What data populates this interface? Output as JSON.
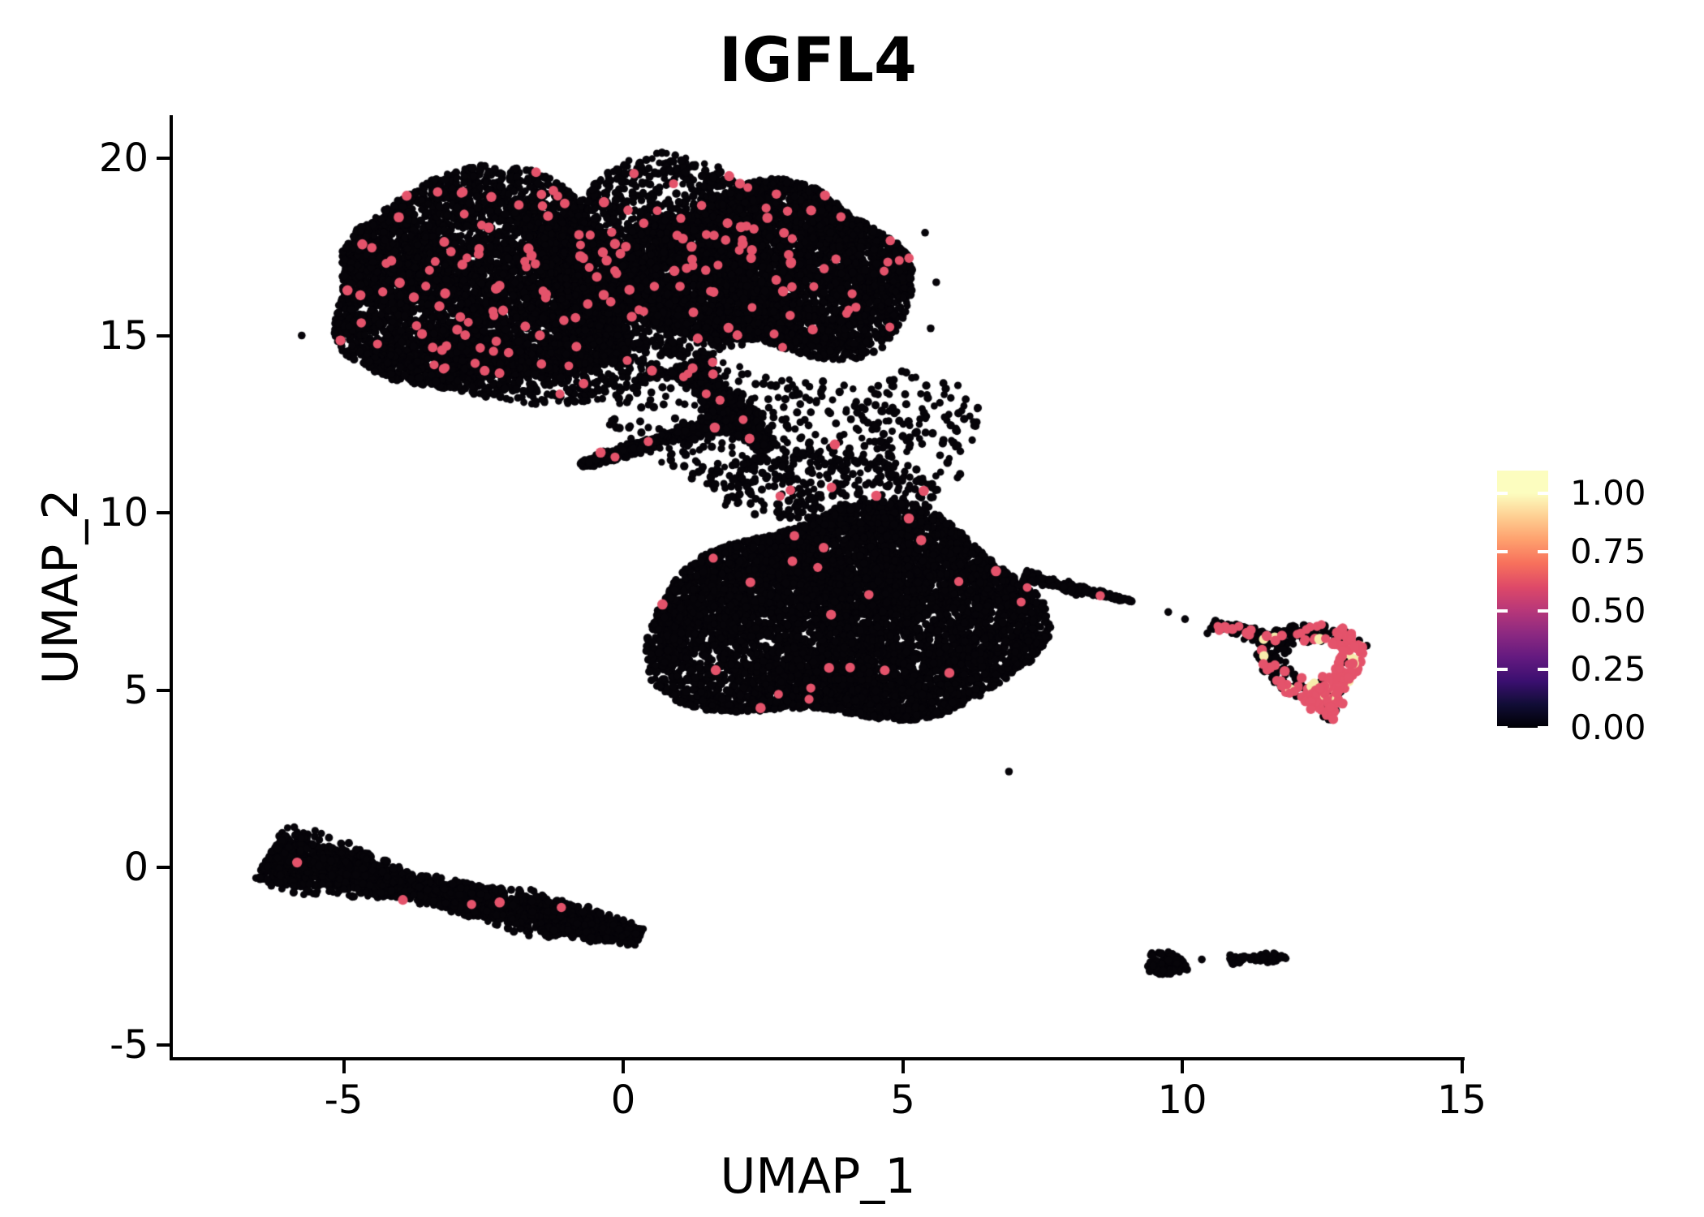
{
  "title": "IGFL4",
  "axes": {
    "x_label": "UMAP_1",
    "y_label": "UMAP_2",
    "x_ticks": [
      "-5",
      "0",
      "5",
      "10",
      "15"
    ],
    "x_tick_values": [
      -5,
      0,
      5,
      10,
      15
    ],
    "y_ticks": [
      "20",
      "15",
      "10",
      "5",
      "0",
      "-5"
    ],
    "y_tick_values": [
      20,
      15,
      10,
      5,
      0,
      -5
    ]
  },
  "legend": {
    "tick_labels": [
      "1.00",
      "0.75",
      "0.50",
      "0.25",
      "0.00"
    ],
    "tick_values": [
      1.0,
      0.75,
      0.5,
      0.25,
      0.0
    ],
    "colormap": "magma",
    "gradient_stops": [
      [
        "#000004",
        0
      ],
      [
        "#110d36",
        9.1
      ],
      [
        "#3b0f70",
        18.2
      ],
      [
        "#641a80",
        27.4
      ],
      [
        "#8c2981",
        36.5
      ],
      [
        "#b73779",
        45.6
      ],
      [
        "#de4968",
        54.7
      ],
      [
        "#f7705c",
        63.8
      ],
      [
        "#fe9f6d",
        72.9
      ],
      [
        "#fecf92",
        82.1
      ],
      [
        "#fcfdbf",
        91.2
      ],
      [
        "#fcfdbf",
        100
      ]
    ]
  },
  "colors": {
    "negative": "#060409",
    "positive": "#e4536b",
    "high_expression": "#f7ecac",
    "axis": "#000000",
    "text": "#000000"
  },
  "chart_data": {
    "type": "scatter",
    "title": "IGFL4",
    "xlabel": "UMAP_1",
    "ylabel": "UMAP_2",
    "xlim": [
      -8.1,
      15.1
    ],
    "ylim": [
      -5.4,
      21.2
    ],
    "grid": false,
    "legend_position": "right",
    "colorbar_range": [
      0,
      1
    ],
    "clusters": [
      {
        "name": "upper-left-lobe",
        "kind": "blob",
        "cx": -2.4,
        "cy": 16.5,
        "rx": 3.1,
        "ry": 2.7,
        "n": 5200,
        "pos_frac": 0.016
      },
      {
        "name": "upper-right-lobe",
        "kind": "blob",
        "cx": 2.65,
        "cy": 16.8,
        "rx": 2.45,
        "ry": 2.5,
        "n": 4200,
        "pos_frac": 0.016
      },
      {
        "name": "upper-center-fill",
        "kind": "blob",
        "cx": 0.6,
        "cy": 17.2,
        "rx": 2.3,
        "ry": 2.6,
        "n": 1700,
        "pos_frac": 0.014
      },
      {
        "name": "upper-bottom-fringe",
        "kind": "blob",
        "cx": -1.9,
        "cy": 14.1,
        "rx": 2.7,
        "ry": 0.9,
        "n": 800,
        "pos_frac": 0.01
      },
      {
        "name": "neck-funnel",
        "kind": "band",
        "x1": 1.1,
        "y1": 14.2,
        "x2": 2.6,
        "y2": 11.8,
        "w": 0.55,
        "taper": 0.4,
        "n": 700,
        "pos_frac": 0.012
      },
      {
        "name": "neck-beak",
        "kind": "band",
        "x1": 2.0,
        "y1": 12.7,
        "x2": -0.75,
        "y2": 11.35,
        "w": 0.28,
        "taper": 0.6,
        "n": 500,
        "pos_frac": 0.008
      },
      {
        "name": "neck-scatter",
        "kind": "blob",
        "cx": 2.1,
        "cy": 12.5,
        "rx": 2.3,
        "ry": 1.8,
        "n": 260,
        "pos_frac": 0.012
      },
      {
        "name": "bridge-scatter",
        "kind": "blob",
        "cx": 3.6,
        "cy": 10.7,
        "rx": 2.0,
        "ry": 1.15,
        "n": 350,
        "pos_frac": 0.009
      },
      {
        "name": "bridge-right",
        "kind": "blob",
        "cx": 5.3,
        "cy": 12.4,
        "rx": 1.2,
        "ry": 1.6,
        "n": 130,
        "pos_frac": 0.01
      },
      {
        "name": "central",
        "kind": "blob",
        "cx": 4.0,
        "cy": 7.0,
        "rx": 3.25,
        "ry": 3.2,
        "n": 7200,
        "pos_frac": 0.0035
      },
      {
        "name": "central-tail",
        "kind": "band",
        "x1": 7.15,
        "y1": 8.2,
        "x2": 9.1,
        "y2": 7.5,
        "w": 0.24,
        "taper": 0.8,
        "n": 180,
        "pos_frac": 0.012
      },
      {
        "name": "lower-left-band",
        "kind": "band",
        "x1": -6.35,
        "y1": 0.35,
        "x2": 0.3,
        "y2": -1.95,
        "w": 0.78,
        "taper": 0.5,
        "n": 2600,
        "pos_frac": 0.002
      },
      {
        "name": "right-ring",
        "kind": "ring",
        "cx": 12.3,
        "cy": 5.85,
        "rx": 0.95,
        "ry": 1.1,
        "hole": 0.45,
        "n": 300,
        "pos_frac": 0.38,
        "high_frac": 0.06
      },
      {
        "name": "ring-bottom-tip",
        "kind": "blob",
        "cx": 12.55,
        "cy": 4.72,
        "rx": 0.38,
        "ry": 0.5,
        "n": 60,
        "pos_frac": 0.7,
        "high_frac": 0.05
      },
      {
        "name": "ring-left-tail",
        "kind": "band",
        "x1": 10.55,
        "y1": 6.85,
        "x2": 11.7,
        "y2": 6.4,
        "w": 0.22,
        "taper": 0.3,
        "n": 120,
        "pos_frac": 0.07
      },
      {
        "name": "bottom-tiny-left",
        "kind": "blob",
        "cx": 9.7,
        "cy": -2.72,
        "rx": 0.4,
        "ry": 0.32,
        "n": 110,
        "pos_frac": 0
      },
      {
        "name": "bottom-tiny-right",
        "kind": "band",
        "x1": 10.85,
        "y1": -2.62,
        "x2": 11.85,
        "y2": -2.52,
        "w": 0.12,
        "taper": 0,
        "n": 90,
        "pos_frac": 0
      },
      {
        "name": "stray-points",
        "kind": "points",
        "pts": [
          [
            10.35,
            -2.6
          ],
          [
            6.9,
            2.7
          ],
          [
            10.05,
            7.0
          ],
          [
            9.75,
            7.2
          ],
          [
            10.45,
            6.6
          ],
          [
            13.3,
            6.25
          ],
          [
            0.9,
            19.9
          ],
          [
            1.7,
            19.75
          ],
          [
            5.5,
            15.2
          ],
          [
            5.6,
            16.5
          ],
          [
            5.4,
            17.9
          ],
          [
            -5.75,
            15.0
          ]
        ],
        "pos_frac": 0
      }
    ]
  }
}
